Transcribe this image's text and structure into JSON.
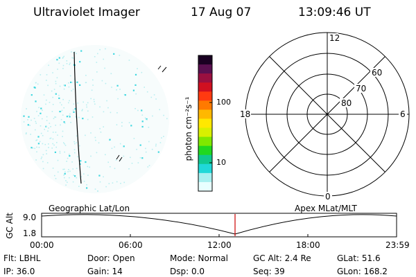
{
  "header": {
    "instrument": "Ultraviolet Imager",
    "date": "17 Aug 07",
    "time": "13:09:46 UT"
  },
  "colorbar": {
    "unit_label": "photon cm⁻²s⁻¹",
    "tick_labels": [
      "100",
      "10"
    ],
    "colors": [
      "#1a0022",
      "#5a1050",
      "#9a1040",
      "#d01020",
      "#ff3a10",
      "#ff7a00",
      "#ffb800",
      "#ffe800",
      "#d8f000",
      "#80e800",
      "#20d820",
      "#10c890",
      "#20d8d8",
      "#a8f0f0",
      "#e8ffff"
    ]
  },
  "image_panel": {
    "label": "Geographic Lat/Lon"
  },
  "polar_plot": {
    "label": "Apex MLat/MLT",
    "mlt_labels": [
      "12",
      "18",
      "6",
      "0"
    ],
    "mlat_labels": [
      "60",
      "70",
      "80"
    ]
  },
  "altitude_plot": {
    "ylabel": "GC Alt",
    "ytick_labels": [
      "9.0",
      "1.8"
    ],
    "xtick_labels": [
      "00:00",
      "06:00",
      "12:00",
      "18:00",
      "23:59"
    ],
    "marker_color": "#cc0000"
  },
  "status": {
    "filter": "Flt: LBHL",
    "door": "Door: Open",
    "mode": "Mode: Normal",
    "gc_alt": "GC Alt: 2.4 Re",
    "glat": "GLat:  51.6",
    "ip": "IP: 36.0",
    "gain": "Gain: 14",
    "dsp": "Dsp:     0.0",
    "seq": "Seq: 39",
    "glon": "GLon: 168.2"
  }
}
